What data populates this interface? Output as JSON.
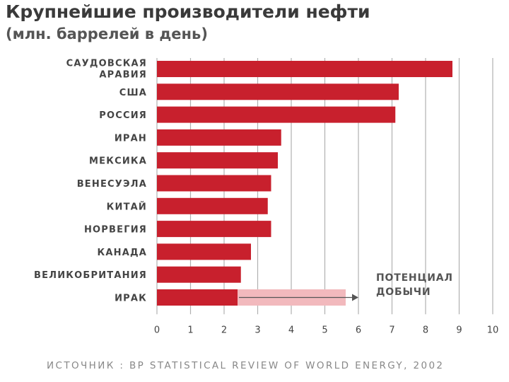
{
  "chart_data": {
    "type": "bar",
    "orientation": "horizontal",
    "title": "Крупнейшие производители нефти",
    "subtitle": "(млн. баррелей в день)",
    "categories": [
      [
        "САУДОВСКАЯ",
        "АРАВИЯ"
      ],
      [
        "США"
      ],
      [
        "РОССИЯ"
      ],
      [
        "ИРАН"
      ],
      [
        "МЕКСИКА"
      ],
      [
        "ВЕНЕСУЭЛА"
      ],
      [
        "КИТАЙ"
      ],
      [
        "НОРВЕГИЯ"
      ],
      [
        "КАНАДА"
      ],
      [
        "ВЕЛИКОБРИТАНИЯ"
      ],
      [
        "ИРАК"
      ]
    ],
    "values": [
      8.8,
      7.2,
      7.1,
      3.7,
      3.6,
      3.4,
      3.3,
      3.4,
      2.8,
      2.5,
      2.4
    ],
    "potential": {
      "category_index": 10,
      "value": 6.0,
      "label": [
        "ПОТЕНЦИАЛ",
        "ДОБЫЧИ"
      ]
    },
    "xticks": [
      "0",
      "1",
      "2",
      "3",
      "4",
      "5",
      "6",
      "7",
      "8",
      "9",
      "10"
    ],
    "xlim": [
      0,
      10
    ],
    "grid": true,
    "source": "ИСТОЧНИК : BP STATISTICAL REVIEW OF WORLD ENERGY, 2002",
    "colors": {
      "bar": "#c8202d",
      "potential": "#f2b9bd",
      "grid": "#b0b0b0",
      "arrow": "#555555"
    }
  }
}
